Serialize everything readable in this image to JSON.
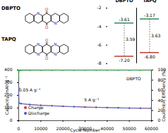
{
  "molecules": [
    {
      "name": "DBPTO",
      "atoms": [
        "O",
        "O",
        "N",
        "N"
      ]
    },
    {
      "name": "TAPQ",
      "atoms": [
        "O",
        "O",
        "N",
        "N",
        "N",
        "N"
      ]
    }
  ],
  "chart_data": [
    {
      "type": "energy_level",
      "categories": [
        "DBPTO",
        "TAPQ"
      ],
      "lumo": {
        "values": [
          -3.61,
          -3.17
        ]
      },
      "homo": {
        "values": [
          -7.2,
          -6.8
        ],
        "value_labels": [
          "-7.20",
          "-6.80"
        ]
      },
      "gap": {
        "values": [
          3.59,
          3.63
        ]
      },
      "ylim": [
        -8,
        -2
      ],
      "yticks": [
        -8,
        -6,
        -4,
        -2
      ]
    },
    {
      "type": "line",
      "x_label": "Cycle Number",
      "y_label": "Capacity, mAh g⁻¹",
      "y2_label": "Coulombic Efficiency (%)",
      "x": [
        0,
        100,
        1000,
        5000,
        10000,
        15000,
        20000,
        25000,
        30000,
        35000,
        40000,
        45000,
        50000,
        55000,
        60000
      ],
      "series": [
        {
          "name": "Charge",
          "color": "#e0322e",
          "marker": "circle",
          "values": [
            260,
            140,
            135,
            128,
            122,
            118,
            114,
            111,
            108,
            106,
            104,
            102,
            100,
            99,
            98
          ]
        },
        {
          "name": "Discharge",
          "color": "#2f5fd0",
          "marker": "circle",
          "values": [
            255,
            139,
            134,
            127,
            121,
            117,
            113,
            110,
            107,
            105,
            103,
            101,
            99,
            98,
            97
          ]
        },
        {
          "color": "#22a33a",
          "marker": "circle",
          "axis": "y2",
          "values": [
            85,
            99,
            99.5,
            99.6,
            99.7,
            99.7,
            99.8,
            99.8,
            99.8,
            99.8,
            99.8,
            99.8,
            99.8,
            99.8,
            99.8
          ]
        }
      ],
      "xlim": [
        0,
        60000
      ],
      "xticks": [
        0,
        10000,
        20000,
        30000,
        40000,
        50000,
        60000
      ],
      "ylim": [
        0,
        400
      ],
      "yticks": [
        0,
        100,
        200,
        300,
        400
      ],
      "y2lim": [
        0,
        100
      ],
      "y2ticks": [
        0,
        20,
        40,
        60,
        80,
        100
      ],
      "legend": "bottom-left",
      "annotations": [
        {
          "text": "0.05 A g⁻¹",
          "x": 5000,
          "y": 240
        },
        {
          "text": "5 A g⁻¹",
          "x": 33000,
          "y": 165
        },
        {
          "text": "DBPTO",
          "x": 52000,
          "y": 330
        }
      ]
    }
  ]
}
